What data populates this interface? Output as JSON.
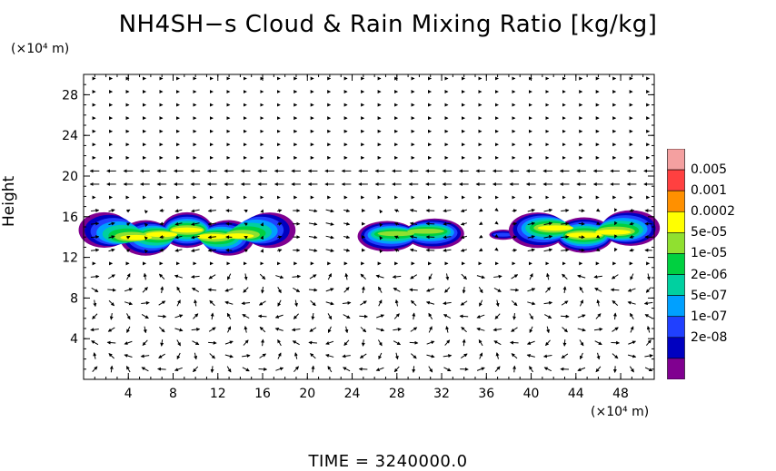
{
  "chart_data": {
    "type": "heatmap",
    "title": "NH4SH−s Cloud & Rain Mixing Ratio [kg/kg]",
    "ylabel": "Height",
    "y_unit": "(×10⁴ m)",
    "x_unit": "(×10⁴ m)",
    "xlim": [
      0,
      51
    ],
    "ylim": [
      0,
      30
    ],
    "x_ticks": [
      4,
      8,
      12,
      16,
      20,
      24,
      28,
      32,
      36,
      40,
      44,
      48
    ],
    "y_ticks": [
      4,
      8,
      12,
      16,
      20,
      24,
      28
    ],
    "colorbar": {
      "levels": [
        "0.005",
        "0.001",
        "0.0002",
        "5e-05",
        "1e-05",
        "2e-06",
        "5e-07",
        "1e-07",
        "2e-08"
      ],
      "colors": [
        "#f4a0a0",
        "#ff4040",
        "#ff9000",
        "#ffff00",
        "#90e030",
        "#00d040",
        "#00d0a0",
        "#00a0ff",
        "#2040ff",
        "#0000c0",
        "#800090"
      ]
    },
    "cloud_regions": [
      {
        "x_start": 0,
        "x_end": 18.5,
        "y_center": 14.3,
        "thickness": 3.5,
        "peak_level": "0.0002"
      },
      {
        "x_start": 25,
        "x_end": 33.5,
        "y_center": 14.3,
        "thickness": 3.0,
        "peak_level": "5e-05"
      },
      {
        "x_start": 36.5,
        "x_end": 38.5,
        "y_center": 14.2,
        "thickness": 1.0,
        "peak_level": "1e-07"
      },
      {
        "x_start": 38.5,
        "x_end": 51,
        "y_center": 14.5,
        "thickness": 3.5,
        "peak_level": "0.0002"
      }
    ],
    "time_label": "TIME  =  3240000.0"
  }
}
